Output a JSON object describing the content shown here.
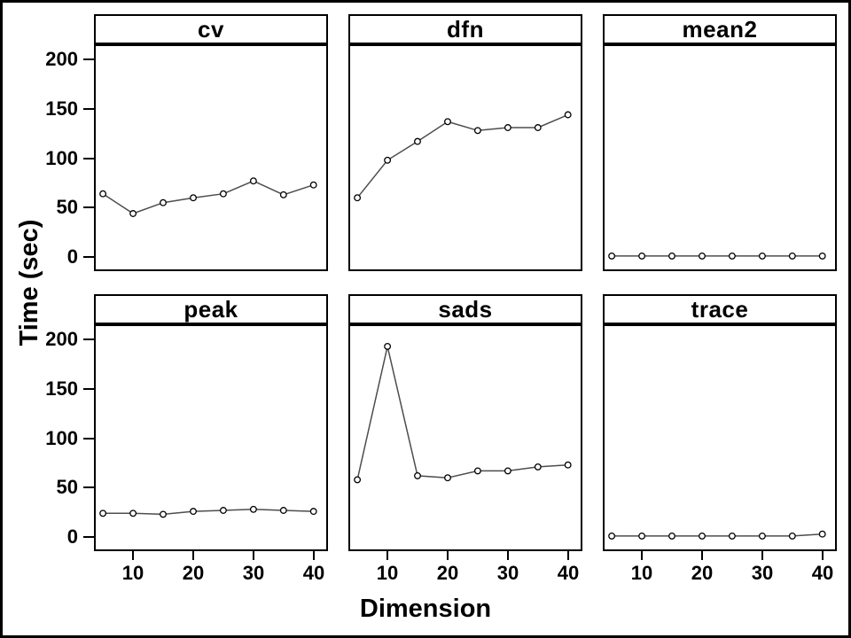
{
  "style": {
    "background": "#ffffff",
    "frame_color": "#000000",
    "text_color": "#000000",
    "line_color": "#4d4d4d",
    "marker_stroke": "#000000",
    "marker_fill": "#ffffff"
  },
  "chart_data": {
    "type": "line",
    "layout": "trellis-2x3",
    "title": "",
    "xlabel": "Dimension",
    "ylabel": "Time (sec)",
    "x": [
      5,
      10,
      15,
      20,
      25,
      30,
      35,
      40
    ],
    "x_ticks": [
      10,
      20,
      30,
      40
    ],
    "y_ticks": [
      0,
      50,
      100,
      150,
      200
    ],
    "xlim": [
      3.8,
      42.1
    ],
    "ylim": [
      -12.5,
      213.5
    ],
    "grid": false,
    "legend": false,
    "marker": "open-circle",
    "panels": [
      {
        "label": "cv",
        "values": [
          64,
          44,
          55,
          60,
          64,
          77,
          63,
          73
        ]
      },
      {
        "label": "dfn",
        "values": [
          60,
          98,
          117,
          137,
          128,
          131,
          131,
          144
        ]
      },
      {
        "label": "mean2",
        "values": [
          1,
          1,
          1,
          1,
          1,
          1,
          1,
          1
        ]
      },
      {
        "label": "peak",
        "values": [
          24,
          24,
          23,
          26,
          27,
          28,
          27,
          26
        ]
      },
      {
        "label": "sads",
        "values": [
          58,
          193,
          62,
          60,
          67,
          67,
          71,
          73
        ]
      },
      {
        "label": "trace",
        "values": [
          1,
          1,
          1,
          1,
          1,
          1,
          1,
          3
        ]
      }
    ]
  }
}
